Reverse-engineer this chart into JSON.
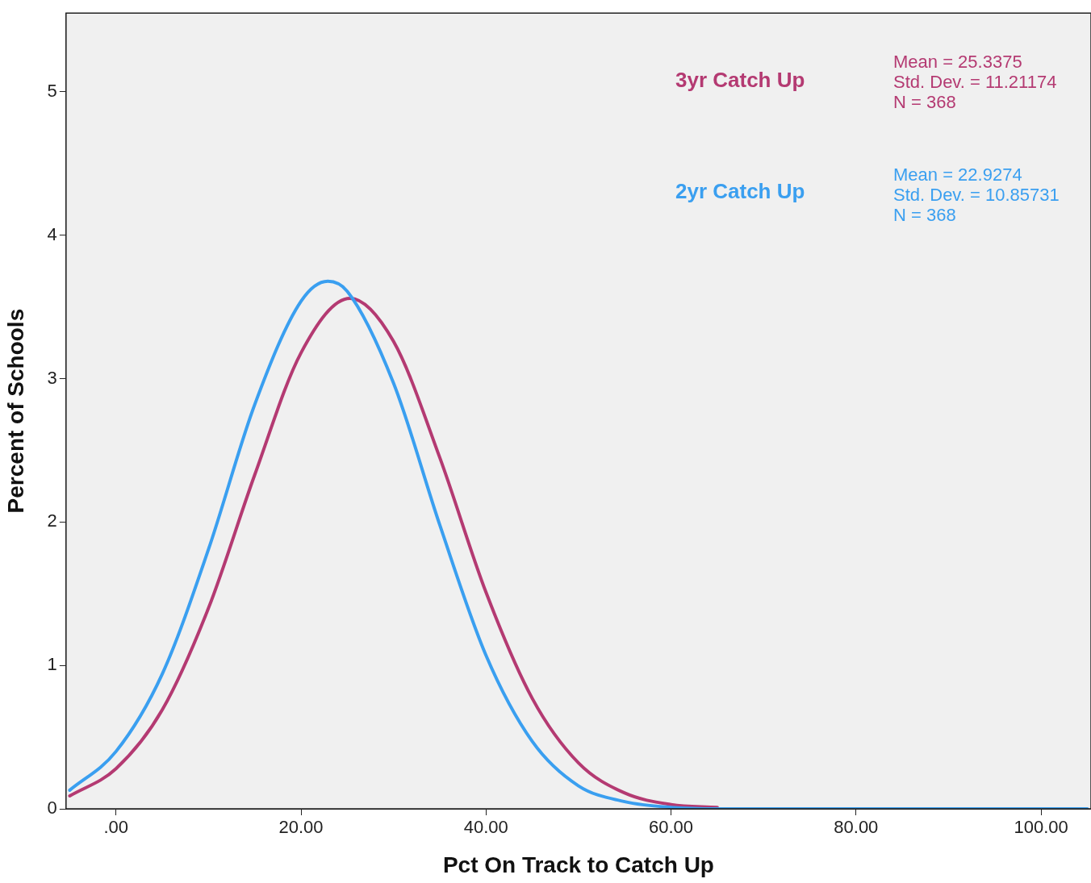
{
  "chart_data": {
    "type": "line",
    "xlabel": "Pct On Track to Catch Up",
    "ylabel": "Percent of Schools",
    "xlim": [
      -5.4,
      105.4
    ],
    "ylim": [
      0,
      5.55
    ],
    "xticks": [
      {
        "value": 0,
        "label": ".00"
      },
      {
        "value": 20,
        "label": "20.00"
      },
      {
        "value": 40,
        "label": "40.00"
      },
      {
        "value": 60,
        "label": "60.00"
      },
      {
        "value": 80,
        "label": "80.00"
      },
      {
        "value": 100,
        "label": "100.00"
      }
    ],
    "yticks": [
      0,
      1,
      2,
      3,
      4,
      5
    ],
    "grid": false,
    "legend": "top right",
    "marker": "none",
    "line_style": "solid",
    "series": [
      {
        "name": "3yr Catch Up",
        "color": "#b43a72",
        "x": [
          -5,
          0,
          5,
          10,
          15,
          20,
          25.3,
          30,
          35,
          40,
          45,
          50,
          55,
          60,
          65
        ],
        "values": [
          0.09,
          0.28,
          0.69,
          1.4,
          2.33,
          3.18,
          3.56,
          3.26,
          2.45,
          1.51,
          0.77,
          0.32,
          0.11,
          0.03,
          0.01
        ]
      },
      {
        "name": "2yr Catch Up",
        "color": "#3a9ff0",
        "x": [
          -5,
          0,
          5,
          10,
          15,
          20,
          22.9,
          25,
          30,
          35,
          40,
          45,
          50,
          55,
          60,
          65,
          70,
          80,
          90,
          100,
          105
        ],
        "values": [
          0.13,
          0.4,
          0.94,
          1.81,
          2.82,
          3.54,
          3.68,
          3.61,
          2.97,
          1.98,
          1.07,
          0.47,
          0.16,
          0.05,
          0.01,
          0,
          0,
          0,
          0,
          0,
          0
        ]
      }
    ],
    "annotations": [
      "Mean = 25.3375\nStd. Dev. = 11.21174\nN = 368",
      "Mean = 22.9274\nStd. Dev. = 10.85731\nN = 368"
    ]
  }
}
